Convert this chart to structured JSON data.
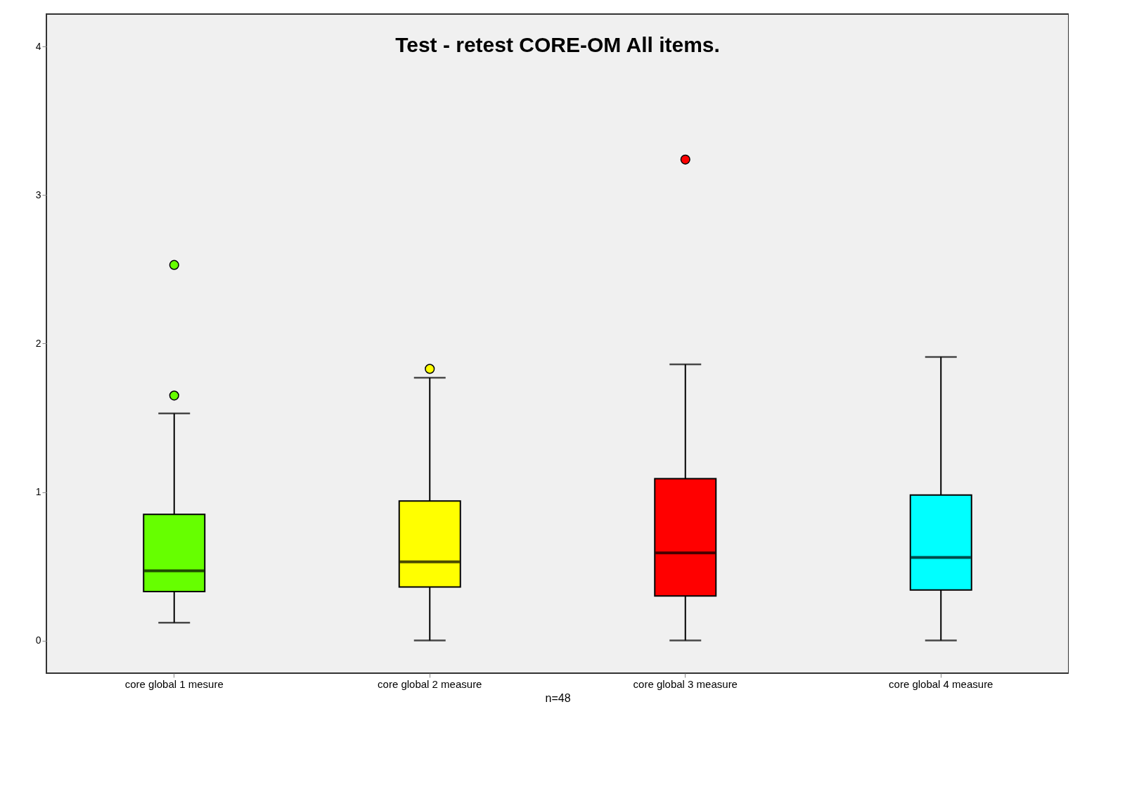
{
  "chart_data": {
    "type": "box",
    "title": "Test - retest CORE-OM All items.",
    "xlabel": "n=48",
    "categories": [
      "core global 1 mesure",
      "core global 2 measure",
      "core global 3 measure",
      "core global 4 measure"
    ],
    "colors": [
      "#66ff00",
      "#ffff00",
      "#ff0000",
      "#00ffff"
    ],
    "boxes": [
      {
        "low": 0.12,
        "q1": 0.33,
        "median": 0.47,
        "q3": 0.85,
        "high": 1.53,
        "outliers": [
          1.65,
          2.53
        ]
      },
      {
        "low": 0,
        "q1": 0.36,
        "median": 0.53,
        "q3": 0.94,
        "high": 1.77,
        "outliers": [
          1.83
        ]
      },
      {
        "low": 0,
        "q1": 0.3,
        "median": 0.59,
        "q3": 1.09,
        "high": 1.86,
        "outliers": [
          3.24
        ]
      },
      {
        "low": 0,
        "q1": 0.34,
        "median": 0.56,
        "q3": 0.98,
        "high": 1.91
      }
    ],
    "ylim": [
      -0.22,
      4.22
    ],
    "yticks": [
      0,
      1,
      2,
      3,
      4
    ],
    "grid": false
  }
}
